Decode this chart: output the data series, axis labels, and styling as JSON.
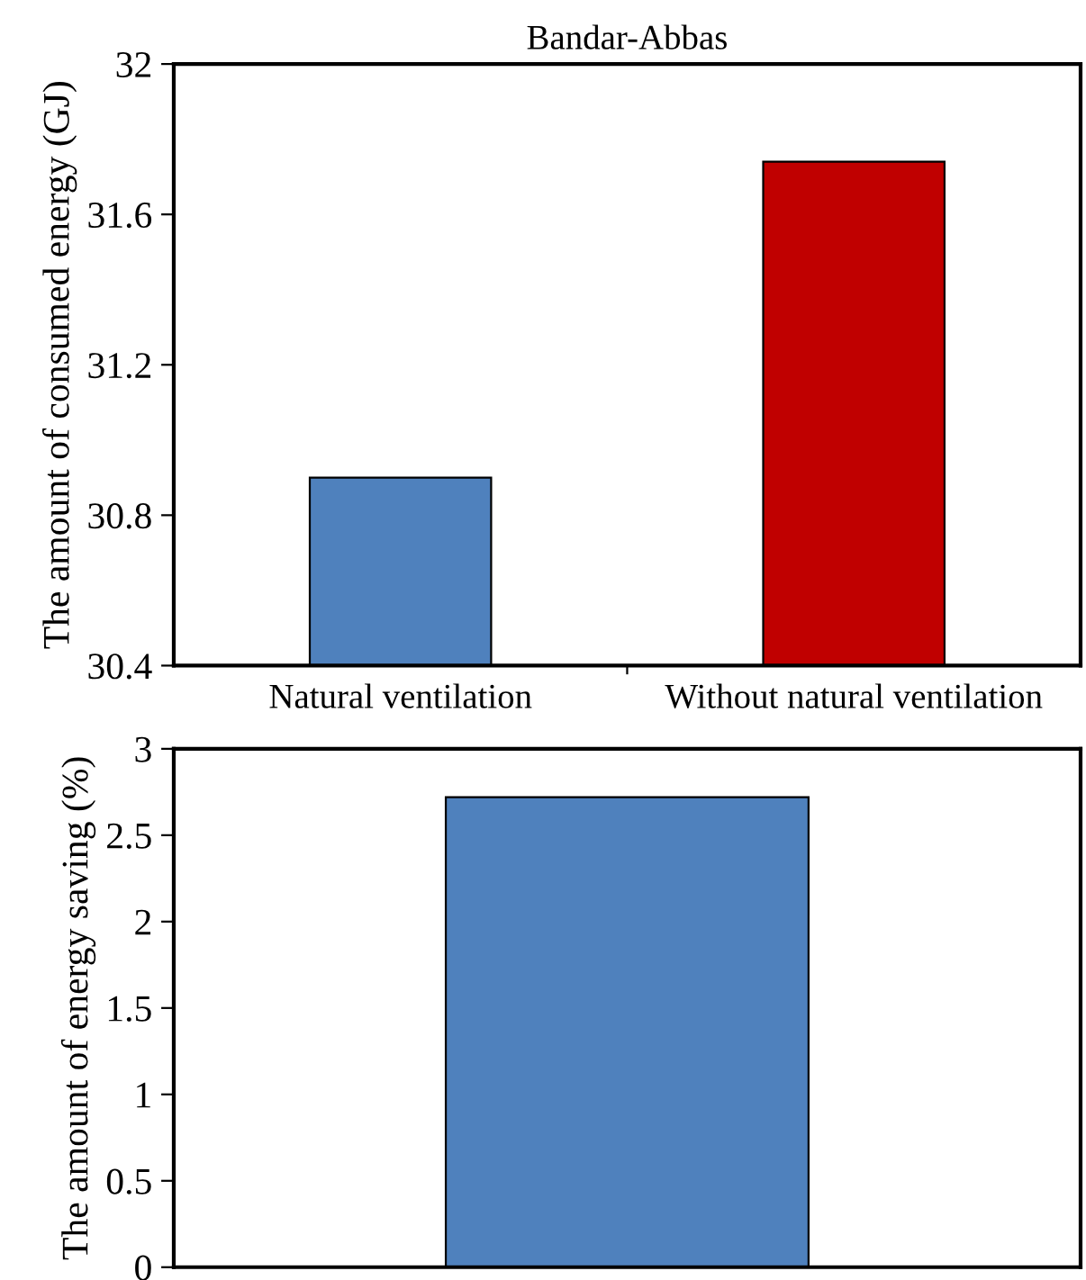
{
  "chart_data": [
    {
      "type": "bar",
      "title": "Bandar-Abbas",
      "ylabel": "The amount of consumed energy (GJ)",
      "categories": [
        "Natural ventilation",
        "Without natural ventilation"
      ],
      "values": [
        30.9,
        31.74
      ],
      "colors": [
        "#4f81bd",
        "#c00000"
      ],
      "ylim": [
        30.4,
        32
      ],
      "yticks": [
        30.4,
        30.8,
        31.2,
        31.6,
        32
      ],
      "grid": false,
      "legend": false
    },
    {
      "type": "bar",
      "ylabel": "The amount of energy saving (%)",
      "categories": [
        null
      ],
      "values": [
        2.72
      ],
      "colors": [
        "#4f81bd"
      ],
      "ylim": [
        0,
        3
      ],
      "yticks": [
        0,
        0.5,
        1,
        1.5,
        2,
        2.5,
        3
      ],
      "grid": false,
      "legend": false
    }
  ]
}
